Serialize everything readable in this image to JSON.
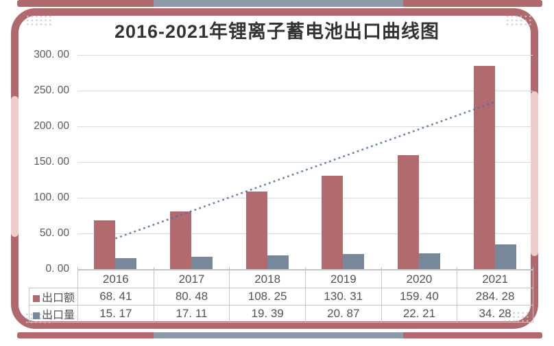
{
  "title": "2016-2021年锂离子蓄电池出口曲线图",
  "chart_data": {
    "type": "bar",
    "title": "2016-2021年锂离子蓄电池出口曲线图",
    "categories": [
      "2016",
      "2017",
      "2018",
      "2019",
      "2020",
      "2021"
    ],
    "series": [
      {
        "name": "出口额",
        "color": "#b16a6e",
        "values": [
          68.41,
          80.48,
          108.25,
          130.31,
          159.4,
          284.28
        ]
      },
      {
        "name": "出口量",
        "color": "#78889b",
        "values": [
          15.17,
          17.11,
          19.39,
          20.87,
          22.21,
          34.28
        ]
      }
    ],
    "trendline": {
      "applies_to": "出口额",
      "kind": "linear",
      "dotted": true,
      "color": "#4e6fa3",
      "start_value": 42.9,
      "end_value": 234.1
    },
    "ylim": [
      0,
      300
    ],
    "ytick_step": 50,
    "ytick_labels": [
      "300. 00",
      "250. 00",
      "200. 00",
      "150. 00",
      "100. 00",
      "50. 00",
      "0. 00"
    ],
    "grid": "horizontal",
    "legend_position": "data-table-left",
    "data_table_shown": true
  },
  "table": {
    "years": [
      "2016",
      "2017",
      "2018",
      "2019",
      "2020",
      "2021"
    ],
    "rows": [
      {
        "legend": "出口额",
        "marker_color": "#b16a6e",
        "values": [
          "68. 41",
          "80. 48",
          "108. 25",
          "130. 31",
          "159. 40",
          "284. 28"
        ]
      },
      {
        "legend": "出口量",
        "marker_color": "#78889b",
        "values": [
          "15. 17",
          "17. 11",
          "19. 39",
          "20. 87",
          "22. 21",
          "34. 28"
        ]
      }
    ]
  },
  "frame": {
    "border_color": "#b06a6d",
    "accent_pink": "#efcdca",
    "accent_gray": "#8c9aa9",
    "dot_color": "#c8c8c8"
  }
}
